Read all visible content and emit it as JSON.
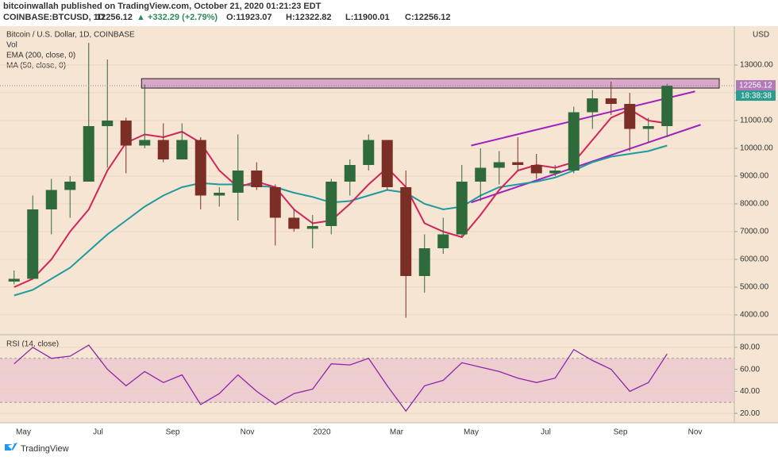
{
  "header": {
    "publisher": "bitcoinwallah published on TradingView.com, October 21, 2020 01:21:23 EDT",
    "symbol": "COINBASE:BTCUSD, 1D",
    "last": "12256.12",
    "change": "▲ +332.29 (+2.79%)",
    "o": "O:11923.07",
    "h": "H:12322.82",
    "l": "L:11900.01",
    "c": "C:12256.12"
  },
  "chart_data": [
    {
      "type": "candlestick",
      "title": "Bitcoin / U.S. Dollar, 1D, COINBASE",
      "volume_label": "Vol",
      "unit": "USD",
      "categories": [
        null,
        "May",
        null,
        null,
        null,
        "Jul",
        null,
        null,
        null,
        "Sep",
        null,
        null,
        null,
        "Nov",
        null,
        null,
        null,
        "2020",
        null,
        null,
        null,
        "Mar",
        null,
        null,
        null,
        "May",
        null,
        null,
        null,
        "Jul",
        null,
        null,
        null,
        "Sep",
        null,
        null,
        null,
        "Nov",
        null
      ],
      "open": [
        5200,
        5300,
        7800,
        8500,
        8800,
        10800,
        11000,
        10100,
        10300,
        9600,
        10300,
        8300,
        8400,
        9200,
        8600,
        7500,
        7100,
        7200,
        8800,
        9400,
        10300,
        8600,
        5400,
        6400,
        6900,
        8800,
        9300,
        9500,
        9400,
        9100,
        9200,
        11300,
        11800,
        11600,
        10700,
        10800,
        null,
        null,
        null
      ],
      "high": [
        5600,
        8300,
        8900,
        9000,
        13800,
        13200,
        11100,
        12300,
        10900,
        10900,
        10400,
        8600,
        10500,
        9500,
        8700,
        7800,
        7600,
        8900,
        9600,
        10500,
        10300,
        9200,
        6900,
        7500,
        9400,
        10000,
        9900,
        10400,
        9800,
        9400,
        11500,
        12100,
        12400,
        12000,
        11100,
        12322.82,
        null,
        null,
        null
      ],
      "low": [
        5100,
        5300,
        6900,
        7500,
        8800,
        9300,
        9100,
        10000,
        9500,
        9600,
        7800,
        7900,
        7400,
        8500,
        6500,
        7000,
        6400,
        6900,
        8300,
        9200,
        8500,
        3900,
        4800,
        6200,
        6800,
        8100,
        8700,
        9200,
        8900,
        9000,
        9100,
        10700,
        11200,
        9900,
        10200,
        10400,
        null,
        null,
        null
      ],
      "close": [
        5300,
        7800,
        8500,
        8800,
        10800,
        11000,
        10100,
        10300,
        9600,
        10300,
        8300,
        8400,
        9200,
        8600,
        7500,
        7100,
        7200,
        8800,
        9400,
        10300,
        8600,
        5400,
        6400,
        6900,
        8800,
        9300,
        9500,
        9400,
        9100,
        9200,
        11300,
        11800,
        11600,
        10700,
        10800,
        12256.12,
        null,
        null,
        null
      ],
      "up_color": "#2f6a3a",
      "down_color": "#7a2e25",
      "series": [
        {
          "name": "EMA (200, close, 0)",
          "color": "#1e9aa0",
          "values": [
            4700,
            4900,
            5300,
            5700,
            6300,
            6900,
            7400,
            7900,
            8300,
            8600,
            8750,
            8700,
            8700,
            8650,
            8600,
            8400,
            8250,
            8050,
            8100,
            8300,
            8500,
            8400,
            8000,
            7800,
            7900,
            8300,
            8600,
            8700,
            8800,
            8950,
            9200,
            9500,
            9700,
            9800,
            9900,
            10100,
            null,
            null,
            null
          ]
        },
        {
          "name": "MA (50, close, 0)",
          "color": "#d2245a",
          "values": [
            5000,
            5300,
            6000,
            7000,
            7800,
            9200,
            10200,
            10500,
            10400,
            10600,
            10200,
            9200,
            8600,
            8800,
            8600,
            7800,
            7300,
            7400,
            8000,
            8700,
            9300,
            8600,
            7300,
            7000,
            6800,
            7600,
            8500,
            9200,
            9400,
            9300,
            9500,
            10300,
            11100,
            11400,
            11000,
            10900,
            null,
            null,
            null
          ]
        }
      ],
      "resistance_zone": [
        12170,
        12510
      ],
      "channel": {
        "color": "#a020c0",
        "upper": [
          10100,
          12050
        ],
        "lower": [
          8050,
          10850
        ]
      },
      "countdown": "18:38:38",
      "ylim": [
        3343,
        14343
      ],
      "yticks": [
        {
          "value": 4000,
          "label": "4000.00"
        },
        {
          "value": 5000,
          "label": "5000.00"
        },
        {
          "value": 6000,
          "label": "6000.00"
        },
        {
          "value": 7000,
          "label": "7000.00"
        },
        {
          "value": 8000,
          "label": "8000.00"
        },
        {
          "value": 9000,
          "label": "9000.00"
        },
        {
          "value": 10000,
          "label": "10000.00"
        },
        {
          "value": 11000,
          "label": "11000.00"
        },
        {
          "value": 12000,
          "label": "12000.00"
        },
        {
          "value": 13000,
          "label": "13000.00"
        }
      ]
    },
    {
      "type": "line",
      "title": "RSI (14, close)",
      "color": "#8e24aa",
      "values": [
        65,
        80,
        70,
        72,
        82,
        60,
        45,
        58,
        48,
        55,
        28,
        38,
        55,
        40,
        28,
        38,
        42,
        65,
        64,
        70,
        45,
        22,
        45,
        50,
        66,
        62,
        58,
        52,
        48,
        52,
        78,
        68,
        60,
        40,
        48,
        74,
        null,
        null,
        null
      ],
      "band": [
        30,
        70
      ],
      "band_color": "#e9bcd0",
      "ylim": [
        13.6,
        89.3
      ],
      "yticks": [
        {
          "value": 20,
          "label": "20.00"
        },
        {
          "value": 40,
          "label": "40.00"
        },
        {
          "value": 60,
          "label": "60.00"
        },
        {
          "value": 80,
          "label": "80.00"
        }
      ]
    }
  ],
  "footer": "TradingView"
}
